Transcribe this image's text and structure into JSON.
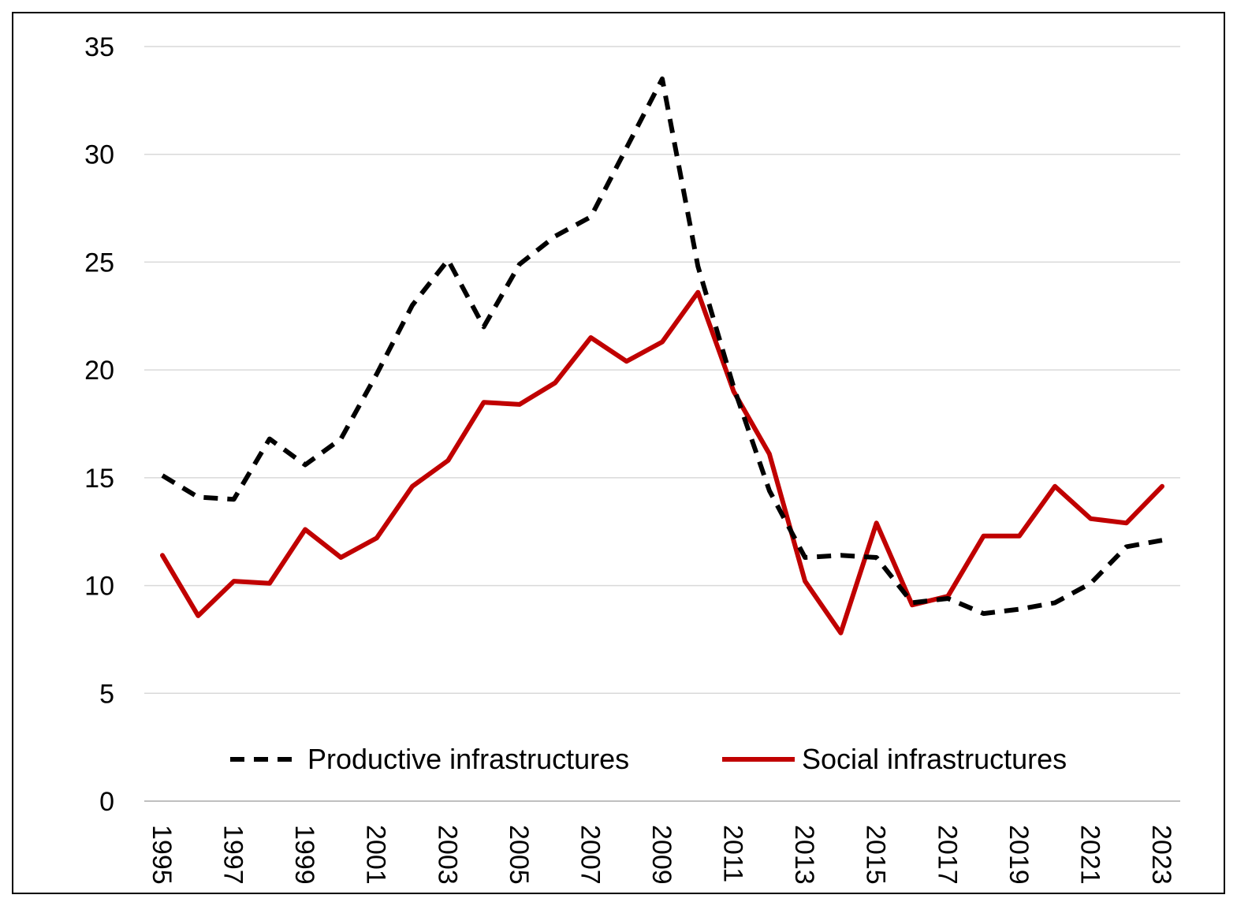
{
  "chart_data": {
    "type": "line",
    "title": "",
    "xlabel": "",
    "ylabel": "",
    "ylim": [
      0,
      35
    ],
    "yticks": [
      0,
      5,
      10,
      15,
      20,
      25,
      30,
      35
    ],
    "grid": true,
    "legend_position": "bottom-center",
    "x": [
      1995,
      1996,
      1997,
      1998,
      1999,
      2000,
      2001,
      2002,
      2003,
      2004,
      2005,
      2006,
      2007,
      2008,
      2009,
      2010,
      2011,
      2012,
      2013,
      2014,
      2015,
      2016,
      2017,
      2018,
      2019,
      2020,
      2021,
      2022,
      2023
    ],
    "xtick_labels": [
      "1995",
      "1997",
      "1999",
      "2001",
      "2003",
      "2005",
      "2007",
      "2009",
      "2011",
      "2013",
      "2015",
      "2017",
      "2019",
      "2021",
      "2023"
    ],
    "series": [
      {
        "name": "Productive infrastructures",
        "color": "#000000",
        "style": "dashed",
        "values": [
          15.1,
          14.1,
          14.0,
          16.8,
          15.6,
          16.8,
          19.8,
          23.0,
          25.1,
          22.0,
          24.9,
          26.2,
          27.1,
          30.3,
          33.5,
          24.8,
          19.2,
          14.4,
          11.3,
          11.4,
          11.3,
          9.2,
          9.4,
          8.7,
          8.9,
          9.2,
          10.1,
          11.8,
          12.1
        ]
      },
      {
        "name": "Social infrastructures",
        "color": "#C00000",
        "style": "solid",
        "values": [
          11.4,
          8.6,
          10.2,
          10.1,
          12.6,
          11.3,
          12.2,
          14.6,
          15.8,
          18.5,
          18.4,
          19.4,
          21.5,
          20.4,
          21.3,
          23.6,
          19.0,
          16.1,
          10.2,
          7.8,
          12.9,
          9.1,
          9.5,
          12.3,
          12.3,
          14.6,
          13.1,
          12.9,
          14.6
        ]
      }
    ]
  }
}
